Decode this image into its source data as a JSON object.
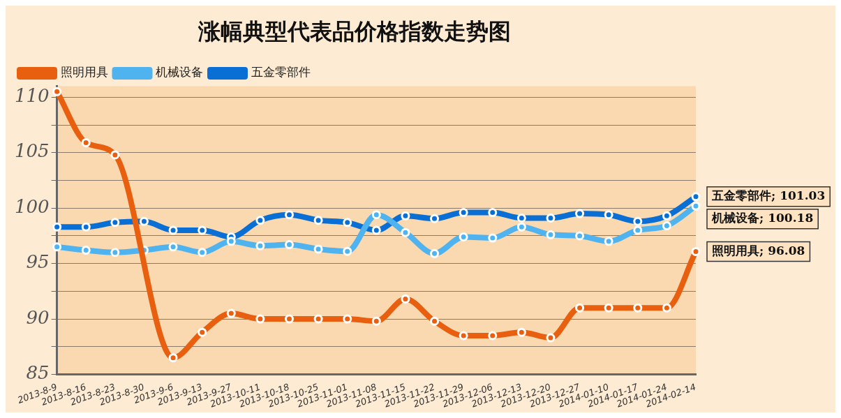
{
  "chart_data": {
    "type": "line",
    "title": "涨幅典型代表品价格指数走势图",
    "categories": [
      "2013-8-9",
      "2013-8-16",
      "2013-8-23",
      "2013-8-30",
      "2013-9-6",
      "2013-9-13",
      "2013-9-27",
      "2013-10-11",
      "2013-10-18",
      "2013-10-25",
      "2013-11-01",
      "2013-11-08",
      "2013-11-15",
      "2013-11-22",
      "2013-11-29",
      "2013-12-06",
      "2013-12-13",
      "2013-12-20",
      "2013-12-27",
      "2014-01-10",
      "2014-01-17",
      "2014-01-24",
      "2014-02-14"
    ],
    "series": [
      {
        "name": "照明用具",
        "color": "#e8600f",
        "values": [
          110.5,
          105.9,
          104.8,
          null,
          86.5,
          88.8,
          90.5,
          90.0,
          90.0,
          90.0,
          90.0,
          89.8,
          91.8,
          89.8,
          88.5,
          88.5,
          88.8,
          88.3,
          91.0,
          91.0,
          91.0,
          91.0,
          96.08
        ]
      },
      {
        "name": "机械设备",
        "color": "#4fb3f0",
        "values": [
          96.5,
          96.2,
          96.0,
          96.2,
          96.5,
          96.0,
          97.0,
          96.6,
          96.7,
          96.3,
          96.1,
          99.4,
          97.8,
          95.9,
          97.4,
          97.3,
          98.3,
          97.6,
          97.5,
          97.0,
          98.0,
          98.4,
          100.18
        ]
      },
      {
        "name": "五金零部件",
        "color": "#0a6fd4",
        "values": [
          98.3,
          98.3,
          98.7,
          98.8,
          98.0,
          98.0,
          97.4,
          98.9,
          99.4,
          98.9,
          98.7,
          98.0,
          99.3,
          99.05,
          99.6,
          99.6,
          99.1,
          99.1,
          99.5,
          99.4,
          98.8,
          99.3,
          101.03
        ]
      }
    ],
    "ylim": [
      85,
      111
    ],
    "yticks": [
      85,
      {
        "value": 87.5,
        "label": null
      },
      90,
      {
        "value": 92.5,
        "label": null
      },
      95,
      {
        "value": 97.5,
        "label": null
      },
      100,
      {
        "value": 102.5,
        "label": null
      },
      105,
      {
        "value": 107.5,
        "label": null
      },
      110
    ],
    "grid": "y",
    "legend": "top left",
    "marker": "circle",
    "line_style": "solid",
    "annotations": [
      {
        "text": "五金零部件; 101.03",
        "x": "2014-02-14",
        "y": 101.03
      },
      {
        "text": "机械设备; 100.18",
        "x": "2014-02-14",
        "y": 100.18
      },
      {
        "text": "照明用具; 96.08",
        "x": "2014-02-14",
        "y": 96.08
      }
    ]
  }
}
